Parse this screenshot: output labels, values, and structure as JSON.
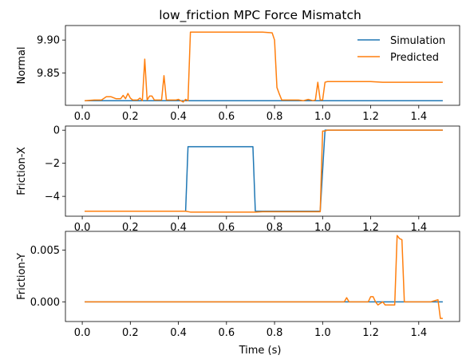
{
  "chart_data": {
    "title": "low_friction MPC Force Mismatch",
    "xlabel": "Time (s)",
    "colors": {
      "simulation": "#1f77b4",
      "predicted": "#ff7f0e"
    },
    "legend": {
      "placement": "top-right",
      "entries": [
        "Simulation",
        "Predicted"
      ]
    },
    "panels": [
      {
        "type": "line",
        "ylabel": "Normal",
        "xlim": [
          -0.07,
          1.57
        ],
        "ylim": [
          9.801,
          9.922
        ],
        "xticks": [
          0.0,
          0.2,
          0.4,
          0.6,
          0.8,
          1.0,
          1.2,
          1.4
        ],
        "xtick_labels": [
          "0.0",
          "0.2",
          "0.4",
          "0.6",
          "0.8",
          "1.0",
          "1.2",
          "1.4"
        ],
        "yticks": [
          9.85,
          9.9
        ],
        "ytick_labels": [
          "9.85",
          "9.90"
        ],
        "series": [
          {
            "name": "Simulation",
            "color": "#1f77b4",
            "x": [
              0.01,
              1.5
            ],
            "y": [
              9.808,
              9.808
            ]
          },
          {
            "name": "Predicted",
            "color": "#ff7f0e",
            "x": [
              0.01,
              0.05,
              0.08,
              0.1,
              0.12,
              0.14,
              0.16,
              0.17,
              0.18,
              0.19,
              0.2,
              0.21,
              0.23,
              0.24,
              0.25,
              0.26,
              0.27,
              0.28,
              0.29,
              0.3,
              0.32,
              0.33,
              0.34,
              0.35,
              0.37,
              0.39,
              0.4,
              0.42,
              0.43,
              0.44,
              0.45,
              0.55,
              0.65,
              0.75,
              0.79,
              0.8,
              0.81,
              0.82,
              0.83,
              0.84,
              0.85,
              0.87,
              0.9,
              0.92,
              0.94,
              0.96,
              0.97,
              0.98,
              0.99,
              1.0,
              1.01,
              1.02,
              1.05,
              1.1,
              1.15,
              1.2,
              1.25,
              1.3,
              1.4,
              1.5
            ],
            "y": [
              9.808,
              9.809,
              9.809,
              9.814,
              9.814,
              9.811,
              9.811,
              9.816,
              9.811,
              9.819,
              9.812,
              9.809,
              9.809,
              9.812,
              9.808,
              9.871,
              9.809,
              9.815,
              9.815,
              9.809,
              9.809,
              9.809,
              9.846,
              9.809,
              9.809,
              9.809,
              9.81,
              9.806,
              9.81,
              9.808,
              9.912,
              9.912,
              9.912,
              9.912,
              9.911,
              9.9,
              9.828,
              9.818,
              9.809,
              9.809,
              9.809,
              9.809,
              9.809,
              9.808,
              9.81,
              9.808,
              9.809,
              9.836,
              9.809,
              9.809,
              9.836,
              9.837,
              9.837,
              9.837,
              9.837,
              9.837,
              9.836,
              9.836,
              9.836,
              9.836
            ]
          }
        ]
      },
      {
        "type": "line",
        "ylabel": "Friction-X",
        "xlim": [
          -0.07,
          1.57
        ],
        "ylim": [
          -5.2,
          0.25
        ],
        "xticks": [
          0.0,
          0.2,
          0.4,
          0.6,
          0.8,
          1.0,
          1.2,
          1.4
        ],
        "xtick_labels": [
          "0.0",
          "0.2",
          "0.4",
          "0.6",
          "0.8",
          "1.0",
          "1.2",
          "1.4"
        ],
        "yticks": [
          -4,
          -2,
          0
        ],
        "ytick_labels": [
          "−4",
          "−2",
          "0"
        ],
        "series": [
          {
            "name": "Simulation",
            "color": "#1f77b4",
            "x": [
              0.01,
              0.43,
              0.44,
              0.71,
              0.72,
              0.99,
              1.01,
              1.5
            ],
            "y": [
              -4.9,
              -4.9,
              -1.0,
              -1.0,
              -4.9,
              -4.9,
              0.0,
              0.0
            ],
            "legend": false
          },
          {
            "name": "Predicted",
            "color": "#ff7f0e",
            "x": [
              0.01,
              0.43,
              0.45,
              0.55,
              0.65,
              0.72,
              0.75,
              0.85,
              0.99,
              1.0,
              1.01,
              1.02,
              1.05,
              1.1,
              1.2,
              1.3,
              1.4,
              1.5
            ],
            "y": [
              -4.9,
              -4.9,
              -4.95,
              -4.95,
              -4.95,
              -4.95,
              -4.93,
              -4.93,
              -4.93,
              -0.05,
              -0.05,
              0.0,
              0.0,
              0.0,
              0.0,
              0.0,
              0.0,
              0.0
            ],
            "legend": false
          }
        ]
      },
      {
        "type": "line",
        "ylabel": "Friction-Y",
        "xlim": [
          -0.07,
          1.57
        ],
        "ylim": [
          -0.0019,
          0.0068
        ],
        "xticks": [
          0.0,
          0.2,
          0.4,
          0.6,
          0.8,
          1.0,
          1.2,
          1.4
        ],
        "xtick_labels": [
          "0.0",
          "0.2",
          "0.4",
          "0.6",
          "0.8",
          "1.0",
          "1.2",
          "1.4"
        ],
        "yticks": [
          0.0,
          0.005
        ],
        "ytick_labels": [
          "0.000",
          "0.005"
        ],
        "series": [
          {
            "name": "Simulation",
            "color": "#1f77b4",
            "x": [
              0.01,
              1.5
            ],
            "y": [
              0.0,
              0.0
            ],
            "legend": false
          },
          {
            "name": "Predicted",
            "color": "#ff7f0e",
            "x": [
              0.01,
              0.5,
              1.0,
              1.05,
              1.09,
              1.1,
              1.11,
              1.15,
              1.19,
              1.2,
              1.21,
              1.22,
              1.23,
              1.25,
              1.26,
              1.27,
              1.3,
              1.31,
              1.32,
              1.33,
              1.34,
              1.35,
              1.4,
              1.45,
              1.48,
              1.49,
              1.5
            ],
            "y": [
              0.0,
              0.0,
              0.0,
              0.0,
              0.0,
              0.0004,
              0.0,
              0.0,
              0.0,
              0.0005,
              0.0005,
              0.0,
              -0.0003,
              0.0,
              -0.0003,
              -0.0003,
              -0.0003,
              0.0064,
              0.0061,
              0.006,
              0.0,
              0.0,
              0.0,
              0.0,
              0.0002,
              -0.0016,
              -0.0016
            ],
            "legend": false
          }
        ]
      }
    ]
  }
}
